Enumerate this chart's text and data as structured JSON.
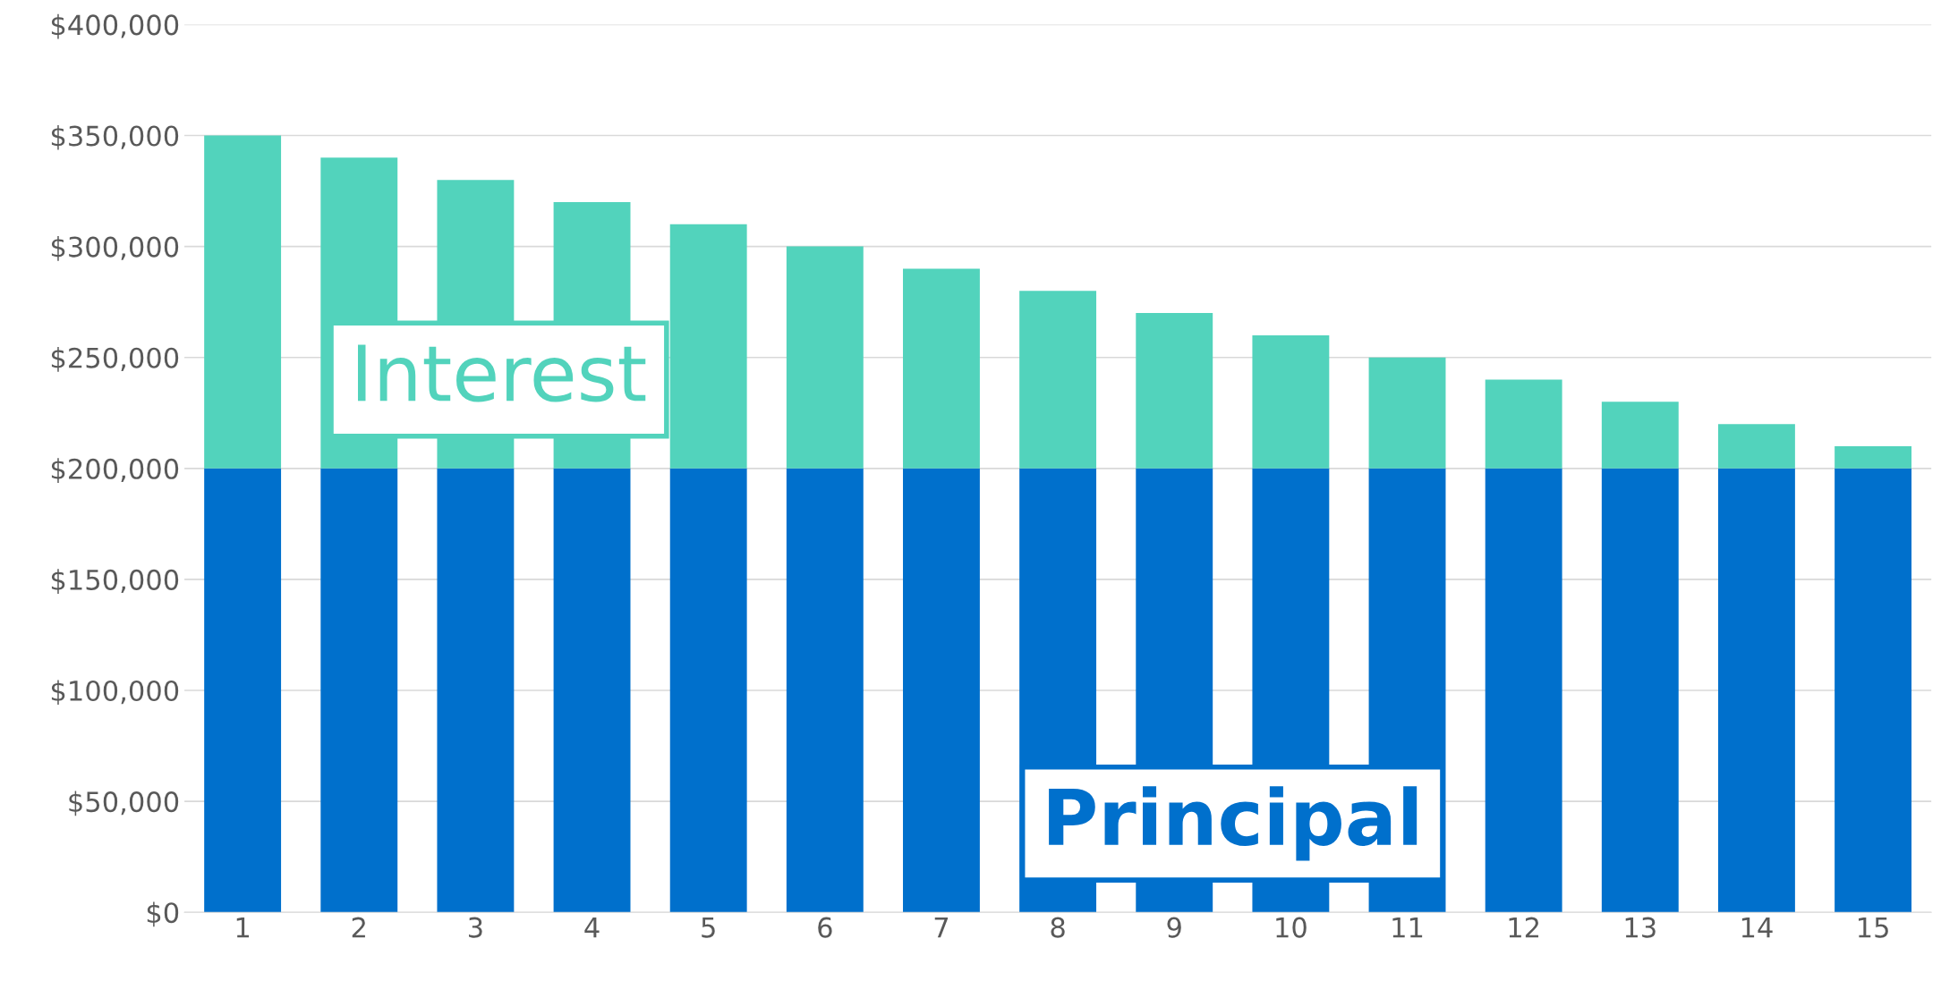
{
  "chart_data": {
    "type": "bar",
    "stacked": true,
    "categories": [
      "1",
      "2",
      "3",
      "4",
      "5",
      "6",
      "7",
      "8",
      "9",
      "10",
      "11",
      "12",
      "13",
      "14",
      "15"
    ],
    "series": [
      {
        "name": "Principal",
        "color": "#0070cc",
        "values": [
          200000,
          200000,
          200000,
          200000,
          200000,
          200000,
          200000,
          200000,
          200000,
          200000,
          200000,
          200000,
          200000,
          200000,
          200000
        ]
      },
      {
        "name": "Interest",
        "color": "#52d3bc",
        "values": [
          150000,
          140000,
          130000,
          120000,
          110000,
          100000,
          90000,
          80000,
          70000,
          60000,
          50000,
          40000,
          30000,
          20000,
          10000
        ]
      }
    ],
    "ylim": [
      0,
      400000
    ],
    "yticks": [
      {
        "value": 0,
        "label": "$0"
      },
      {
        "value": 50000,
        "label": "$50,000"
      },
      {
        "value": 100000,
        "label": "$100,000"
      },
      {
        "value": 150000,
        "label": "$150,000"
      },
      {
        "value": 200000,
        "label": "$200,000"
      },
      {
        "value": 250000,
        "label": "$250,000"
      },
      {
        "value": 300000,
        "label": "$300,000"
      },
      {
        "value": 350000,
        "label": "$350,000"
      },
      {
        "value": 400000,
        "label": "$400,000"
      }
    ],
    "grid": "y",
    "legend": false
  }
}
